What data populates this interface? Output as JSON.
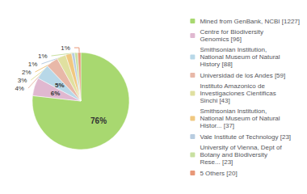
{
  "chart_data": {
    "type": "pie",
    "categories": [
      "Mined from GenBank, NCBI [1227]",
      "Centre for Biodiversity\nGenomics [96]",
      "Smithsonian Institution,\nNational Museum of Natural\nHistory [88]",
      "Universidad de los Andes [59]",
      "Instituto Amazonico de\nInvestigaciones Cientificas\nSinchi [43]",
      "Smithsonian Institution,\nNational Museum of Natural\nHistor... [37]",
      "Vale Institute of Technology [23]",
      "University of Vienna, Dept of\nBotany and Biodiversity\nRese... [23]",
      "5 Others [20]"
    ],
    "values": [
      76,
      6,
      5,
      4,
      3,
      2,
      1,
      1,
      1
    ],
    "value_labels": [
      "76%",
      "6%",
      "5%",
      "4%",
      "3%",
      "2%",
      "1%",
      "1%",
      "1%"
    ],
    "colors": [
      "#a8d870",
      "#e0b8d0",
      "#b8d8e8",
      "#e8b8a8",
      "#e0e0a0",
      "#f0c880",
      "#b8cce0",
      "#c8e0a0",
      "#e89878"
    ],
    "data_labels": true,
    "legend": "right"
  }
}
